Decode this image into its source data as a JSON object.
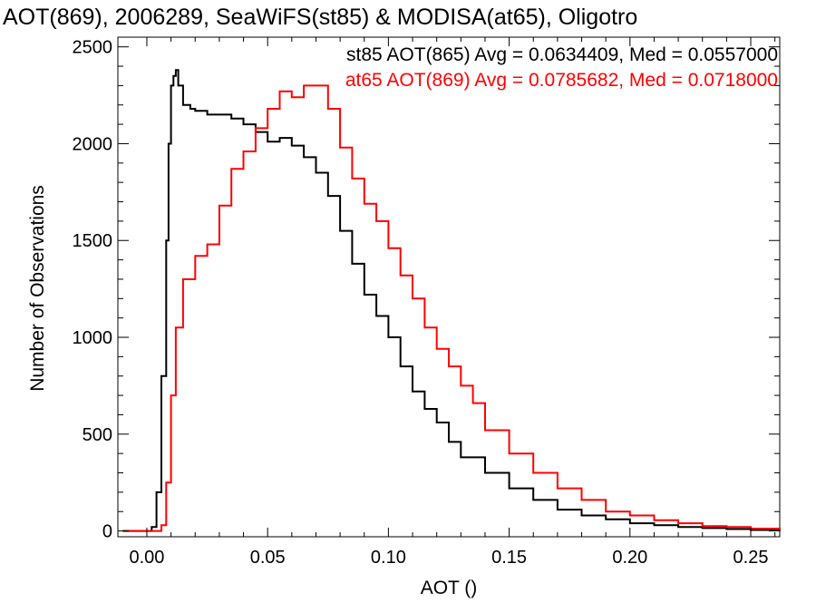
{
  "chart_data": {
    "type": "line",
    "title": "AOT(869), 2006289, SeaWiFS(st85) & MODISA(at65), Oligotro",
    "xlabel": "AOT ()",
    "ylabel": "Number of Observations",
    "xlim": [
      -0.012,
      0.262
    ],
    "ylim": [
      -30,
      2550
    ],
    "x_ticks": [
      0.0,
      0.05,
      0.1,
      0.15,
      0.2,
      0.25
    ],
    "x_tick_labels": [
      "0.00",
      "0.05",
      "0.10",
      "0.15",
      "0.20",
      "0.25"
    ],
    "y_ticks": [
      0,
      500,
      1000,
      1500,
      2000,
      2500
    ],
    "y_tick_labels": [
      "0",
      "500",
      "1000",
      "1500",
      "2000",
      "2500"
    ],
    "grid": false,
    "legend_placement": "top-right",
    "series": [
      {
        "name": "st85",
        "color": "#000000",
        "legend_text": "st85 AOT(865) Avg = 0.0634409, Med = 0.0557000",
        "x": [
          -0.01,
          0.0,
          0.002,
          0.004,
          0.006,
          0.008,
          0.009,
          0.01,
          0.011,
          0.012,
          0.013,
          0.015,
          0.018,
          0.02,
          0.025,
          0.03,
          0.035,
          0.04,
          0.045,
          0.05,
          0.055,
          0.06,
          0.065,
          0.07,
          0.075,
          0.08,
          0.085,
          0.09,
          0.095,
          0.1,
          0.105,
          0.11,
          0.115,
          0.12,
          0.125,
          0.13,
          0.14,
          0.15,
          0.16,
          0.17,
          0.18,
          0.19,
          0.2,
          0.21,
          0.22,
          0.23,
          0.24,
          0.25,
          0.262
        ],
        "y": [
          0,
          0,
          20,
          200,
          800,
          1500,
          2000,
          2300,
          2350,
          2380,
          2300,
          2200,
          2180,
          2170,
          2150,
          2150,
          2130,
          2100,
          2060,
          2010,
          2030,
          1990,
          1930,
          1850,
          1730,
          1550,
          1380,
          1220,
          1110,
          1000,
          850,
          720,
          630,
          560,
          460,
          380,
          300,
          220,
          160,
          110,
          80,
          60,
          40,
          30,
          20,
          15,
          10,
          5,
          0
        ]
      },
      {
        "name": "at65",
        "color": "#ff0000",
        "legend_text": "at65 AOT(869) Avg = 0.0785682, Med = 0.0718000",
        "x": [
          -0.01,
          0.0,
          0.004,
          0.006,
          0.008,
          0.01,
          0.012,
          0.015,
          0.02,
          0.025,
          0.03,
          0.035,
          0.04,
          0.045,
          0.05,
          0.055,
          0.06,
          0.065,
          0.07,
          0.075,
          0.08,
          0.085,
          0.09,
          0.095,
          0.1,
          0.105,
          0.11,
          0.115,
          0.12,
          0.125,
          0.13,
          0.135,
          0.14,
          0.15,
          0.16,
          0.17,
          0.18,
          0.19,
          0.2,
          0.21,
          0.22,
          0.23,
          0.24,
          0.25,
          0.262
        ],
        "y": [
          0,
          0,
          0,
          30,
          250,
          700,
          1050,
          1300,
          1420,
          1480,
          1680,
          1870,
          1960,
          2080,
          2180,
          2270,
          2240,
          2300,
          2300,
          2180,
          1980,
          1820,
          1690,
          1600,
          1460,
          1320,
          1200,
          1050,
          940,
          850,
          750,
          660,
          520,
          400,
          300,
          220,
          160,
          100,
          80,
          55,
          40,
          25,
          20,
          12,
          5
        ]
      }
    ]
  }
}
